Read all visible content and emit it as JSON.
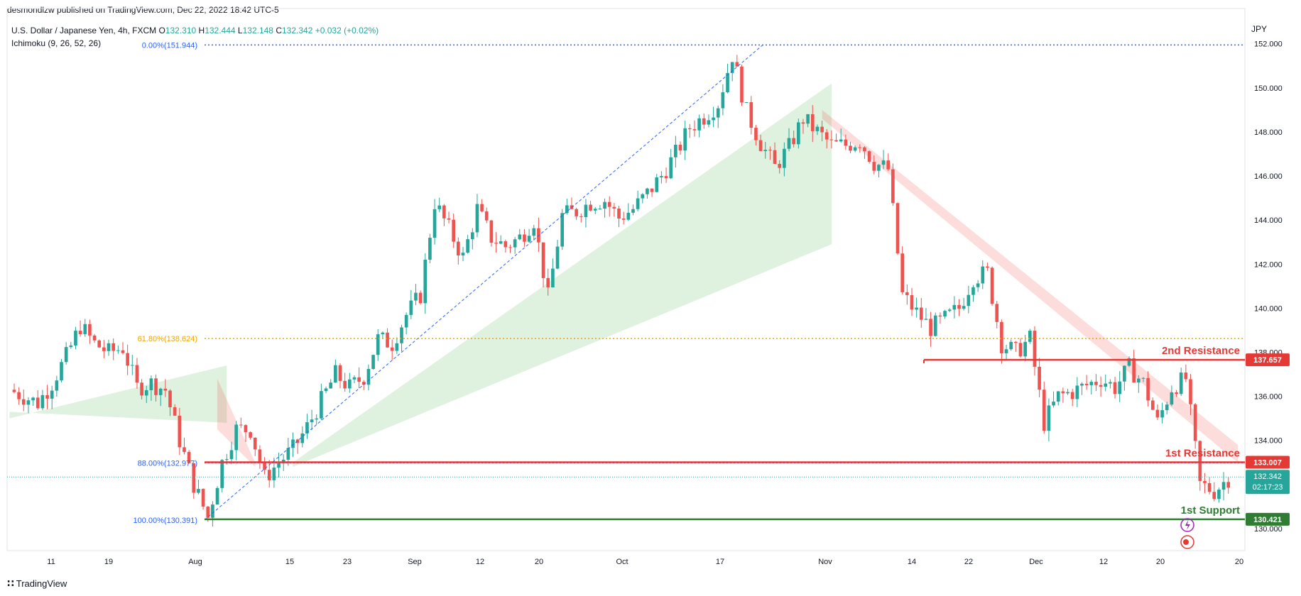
{
  "header": {
    "published": "desmondlzw published on TradingView.com, Dec 22, 2022 18:42 UTC-5",
    "symbol": "U.S. Dollar / Japanese Yen, 4h, FXCM",
    "ohlc": [
      {
        "k": "O",
        "v": "132.310"
      },
      {
        "k": "H",
        "v": "132.444"
      },
      {
        "k": "L",
        "v": "132.148"
      },
      {
        "k": "C",
        "v": "132.342"
      },
      {
        "k": "",
        "v": "+0.032 (+0.02%)"
      }
    ],
    "indicator": "Ichimoku (9, 26, 52, 26)",
    "currency": "JPY"
  },
  "footer": {
    "brand": "TradingView"
  },
  "chart_data": {
    "type": "candlestick",
    "title": "U.S. Dollar / Japanese Yen, 4h, FXCM",
    "ylim": [
      129.0,
      153.6
    ],
    "y_ticks": [
      "130.000",
      "132.000",
      "134.000",
      "136.000",
      "138.000",
      "140.000",
      "142.000",
      "144.000",
      "146.000",
      "148.000",
      "150.000",
      "152.000"
    ],
    "x_ticks": [
      "11",
      "19",
      "Aug",
      "15",
      "23",
      "Sep",
      "12",
      "20",
      "Oct",
      "17",
      "Nov",
      "14",
      "22",
      "Dec",
      "12",
      "20",
      "20"
    ],
    "close_path": [
      [
        0,
        136.3
      ],
      [
        3,
        136.0
      ],
      [
        6,
        135.7
      ],
      [
        9,
        136.6
      ],
      [
        12,
        137.8
      ],
      [
        15,
        139.2
      ],
      [
        18,
        138.4
      ],
      [
        21,
        138.0
      ],
      [
        24,
        138.2
      ],
      [
        27,
        136.4
      ],
      [
        30,
        136.6
      ],
      [
        33,
        136.3
      ],
      [
        36,
        134.0
      ],
      [
        39,
        132.0
      ],
      [
        42,
        130.5
      ],
      [
        45,
        133.0
      ],
      [
        48,
        134.5
      ],
      [
        51,
        134.5
      ],
      [
        54,
        132.3
      ],
      [
        57,
        133.0
      ],
      [
        60,
        133.6
      ],
      [
        63,
        134.6
      ],
      [
        66,
        135.8
      ],
      [
        69,
        137.0
      ],
      [
        72,
        136.4
      ],
      [
        75,
        136.9
      ],
      [
        78,
        138.6
      ],
      [
        81,
        138.4
      ],
      [
        84,
        139.7
      ],
      [
        87,
        140.6
      ],
      [
        90,
        144.8
      ],
      [
        93,
        143.6
      ],
      [
        96,
        142.3
      ],
      [
        99,
        144.5
      ],
      [
        102,
        143.2
      ],
      [
        105,
        142.8
      ],
      [
        108,
        143.2
      ],
      [
        111,
        144.0
      ],
      [
        114,
        140.5
      ],
      [
        117,
        144.2
      ],
      [
        120,
        144.4
      ],
      [
        123,
        144.8
      ],
      [
        126,
        144.9
      ],
      [
        129,
        144.1
      ],
      [
        132,
        144.5
      ],
      [
        135,
        145.2
      ],
      [
        138,
        146.0
      ],
      [
        141,
        147.0
      ],
      [
        144,
        148.2
      ],
      [
        147,
        148.7
      ],
      [
        150,
        149.3
      ],
      [
        153,
        151.5
      ],
      [
        156,
        148.9
      ],
      [
        159,
        147.5
      ],
      [
        162,
        146.4
      ],
      [
        165,
        147.3
      ],
      [
        168,
        148.6
      ],
      [
        171,
        148.0
      ],
      [
        174,
        147.4
      ],
      [
        177,
        147.4
      ],
      [
        180,
        147.6
      ],
      [
        183,
        146.6
      ],
      [
        186,
        146.3
      ],
      [
        189,
        140.6
      ],
      [
        192,
        139.8
      ],
      [
        195,
        139.1
      ],
      [
        198,
        139.5
      ],
      [
        201,
        140.0
      ],
      [
        204,
        141.4
      ],
      [
        207,
        141.6
      ],
      [
        210,
        138.4
      ],
      [
        213,
        138.0
      ],
      [
        216,
        138.6
      ],
      [
        219,
        134.8
      ],
      [
        222,
        136.0
      ],
      [
        225,
        136.2
      ],
      [
        228,
        136.5
      ],
      [
        231,
        136.8
      ],
      [
        234,
        136.4
      ],
      [
        237,
        137.3
      ],
      [
        240,
        136.6
      ],
      [
        243,
        134.8
      ],
      [
        246,
        136.4
      ],
      [
        249,
        136.8
      ],
      [
        252,
        132.0
      ],
      [
        255,
        131.7
      ],
      [
        258,
        132.3
      ]
    ],
    "ichimoku_cloud": [
      {
        "from": 0,
        "to": 46,
        "span_a": [
          135.0,
          137.4
        ],
        "span_b": [
          135.3,
          134.8
        ],
        "color": "bullish-green"
      },
      {
        "from": 44,
        "to": 52,
        "span_a": [
          134.5,
          132.8
        ],
        "span_b": [
          136.8,
          133.0
        ],
        "color": "bearish-red"
      },
      {
        "from": 60,
        "to": 174,
        "span_a": [
          133.0,
          150.2
        ],
        "span_b": [
          132.8,
          142.9
        ],
        "color": "bullish-green"
      },
      {
        "from": 172,
        "to": 260,
        "span_a": [
          148.6,
          133.0
        ],
        "span_b": [
          149.0,
          133.8
        ],
        "color": "bearish-red"
      }
    ],
    "fibonacci": [
      {
        "label": "0.00%(151.944)",
        "value": 151.944,
        "color": "#2962ff"
      },
      {
        "label": "61.80%(138.624)",
        "value": 138.624,
        "color": "#f0a500"
      },
      {
        "label": "88.00%(132.977)",
        "value": 132.977,
        "color": "#2962ff"
      },
      {
        "label": "100.00%(130.391)",
        "value": 130.391,
        "color": "#2962ff"
      }
    ],
    "levels": [
      {
        "name": "2nd Resistance",
        "value": 137.657,
        "price_label": "137.657",
        "color": "#e53935"
      },
      {
        "name": "1st Resistance",
        "value": 133.007,
        "price_label": "133.007",
        "color": "#e53935"
      },
      {
        "name": "1st Support",
        "value": 130.421,
        "price_label": "130.421",
        "color": "#2e7d32"
      }
    ],
    "current_price": {
      "value": 132.342,
      "label": "132.342",
      "countdown": "02:17:23",
      "color": "#26a69a"
    },
    "trend_line": {
      "from_value": 130.391,
      "to_value": 151.944
    }
  }
}
